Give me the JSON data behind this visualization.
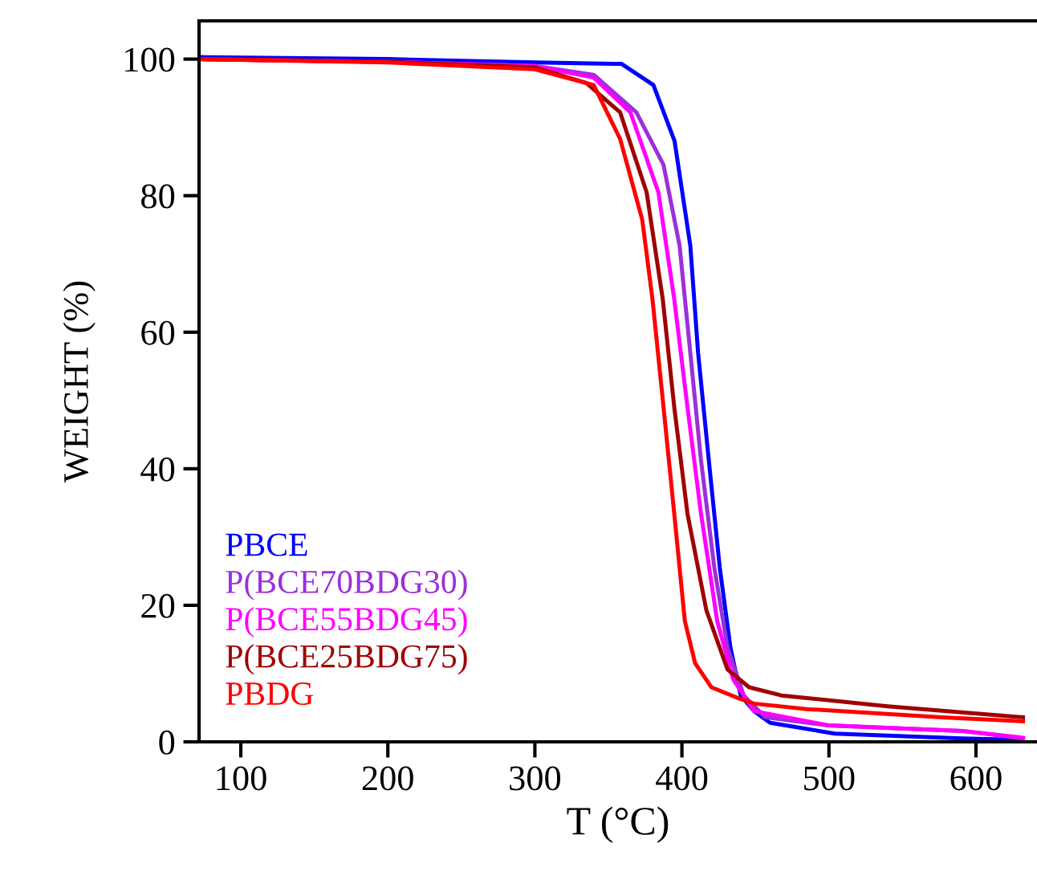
{
  "chart_data": {
    "type": "line",
    "xlabel": "T (°C)",
    "ylabel": "WEIGHT (%)",
    "xlim": [
      71.6,
      641.5
    ],
    "xticks": [
      100,
      200,
      300,
      400,
      500,
      600
    ],
    "ylim": [
      0,
      105.6
    ],
    "yticks": [
      0,
      20,
      40,
      60,
      80,
      100
    ],
    "grid": false,
    "legend": "bottom left",
    "marker": "none",
    "line_style": "solid",
    "series": [
      {
        "name": "PBCE",
        "color": "#0000ff",
        "x": [
          72,
          200,
          300,
          359,
          380.6,
          395,
          405.7,
          411,
          418.4,
          425.7,
          433,
          440,
          449,
          460,
          504,
          591,
          632
        ],
        "values": [
          100.3,
          100,
          99.5,
          99.3,
          96.2,
          88,
          72.7,
          57,
          41,
          25.6,
          13.8,
          6.8,
          4.5,
          2.8,
          1.2,
          0.5,
          0.3
        ]
      },
      {
        "name": "P(BCE70BDG30)",
        "color": "#9b30d9",
        "x": [
          72,
          200,
          300,
          340,
          369,
          387.5,
          398.4,
          405.7,
          413,
          422,
          431,
          442,
          456.7,
          500,
          591,
          632
        ],
        "values": [
          100,
          99.6,
          99,
          97.7,
          92.2,
          84.5,
          72.7,
          57,
          41.2,
          25.6,
          13.8,
          6.8,
          3.6,
          2.4,
          1.6,
          0.5
        ]
      },
      {
        "name": "P(BCE55BDG45)",
        "color": "#ff00ff",
        "x": [
          72,
          200,
          300,
          340,
          365,
          384,
          394.8,
          403.8,
          413,
          424,
          434.8,
          449,
          500,
          591,
          632
        ],
        "values": [
          100,
          99.6,
          99,
          97.3,
          92.2,
          80.5,
          64.8,
          49,
          33.4,
          17.7,
          9.2,
          4.5,
          2.4,
          1.6,
          0.6
        ]
      },
      {
        "name": "P(BCE25BDG75)",
        "color": "#a00000",
        "x": [
          72,
          200,
          300,
          335,
          358,
          376,
          387,
          394.8,
          403.8,
          416.6,
          431,
          445.7,
          467.6,
          540,
          632
        ],
        "values": [
          100,
          99.6,
          98.8,
          96.5,
          92.2,
          80.5,
          64.8,
          49,
          33.4,
          19.3,
          10.6,
          8,
          6.8,
          5.2,
          3.6
        ]
      },
      {
        "name": "PBDG",
        "color": "#ff0000",
        "x": [
          72,
          200,
          300,
          340,
          358,
          373,
          380,
          387.5,
          394.8,
          402,
          409,
          420,
          438.4,
          449,
          485,
          577,
          632
        ],
        "values": [
          100,
          99.5,
          98.5,
          96.2,
          88.3,
          76.5,
          64.8,
          49,
          33.4,
          17.7,
          11.5,
          8,
          6.4,
          5.6,
          4.8,
          3.6,
          3.0
        ]
      }
    ]
  }
}
